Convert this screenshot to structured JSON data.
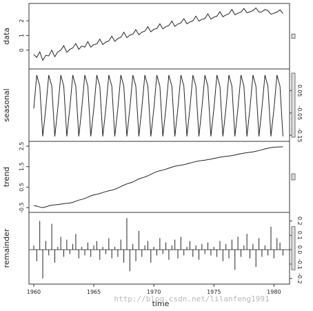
{
  "chart_data": {
    "type": "line",
    "title": "",
    "xlabel": "time",
    "x_ticks": [
      1960,
      1965,
      1970,
      1975,
      1980
    ],
    "x_range": [
      1959.6,
      1981.3
    ],
    "series_start": 1960.0,
    "series_end": 1980.75,
    "frequency": 4,
    "panels": [
      {
        "name": "data",
        "ylabel": "data",
        "ylim": [
          -1.1,
          3.0
        ],
        "yticks": [
          0,
          1,
          2
        ],
        "tick_side": "left",
        "values": [
          -0.3,
          -0.5,
          -0.12,
          -0.7,
          -0.36,
          -0.4,
          0.0,
          -0.45,
          -0.12,
          0.0,
          0.3,
          -0.15,
          0.05,
          0.15,
          0.45,
          0.05,
          0.28,
          0.2,
          0.58,
          0.2,
          0.38,
          0.42,
          0.75,
          0.38,
          0.55,
          0.62,
          0.95,
          0.6,
          0.78,
          0.88,
          1.22,
          0.85,
          1.02,
          1.08,
          1.4,
          1.05,
          1.22,
          1.3,
          1.6,
          1.25,
          1.42,
          1.48,
          1.8,
          1.45,
          1.6,
          1.68,
          1.98,
          1.62,
          1.78,
          1.86,
          2.15,
          1.8,
          1.92,
          2.0,
          2.32,
          1.98,
          2.1,
          2.16,
          2.48,
          2.12,
          2.25,
          2.32,
          2.62,
          2.28,
          2.4,
          2.48,
          2.78,
          2.42,
          2.52,
          2.6,
          2.85,
          2.55,
          2.62,
          2.7,
          2.88,
          2.6,
          2.62,
          2.78,
          2.7,
          2.45,
          2.52,
          2.6,
          2.75,
          2.5
        ]
      },
      {
        "name": "seasonal",
        "ylabel": "seasonal",
        "ylim": [
          -0.165,
          0.135
        ],
        "yticks": [
          0.05,
          -0.05,
          -0.15
        ],
        "ytick_labels": [
          "0.05",
          "-0.05",
          "-0.15"
        ],
        "tick_side": "right",
        "pattern": [
          -0.03,
          0.12,
          0.07,
          -0.155
        ]
      },
      {
        "name": "trend",
        "ylabel": "trend",
        "ylim": [
          -0.6,
          2.6
        ],
        "yticks": [
          -0.5,
          0.5,
          1.5,
          2.5
        ],
        "ytick_labels": [
          "-0.5",
          "0.5",
          "1.5",
          "2.5"
        ],
        "tick_side": "left",
        "anchors": [
          [
            1960.0,
            -0.4
          ],
          [
            1960.75,
            -0.5
          ],
          [
            1961.5,
            -0.38
          ],
          [
            1963.0,
            -0.28
          ],
          [
            1964.0,
            -0.1
          ],
          [
            1965.0,
            0.12
          ],
          [
            1966.5,
            0.35
          ],
          [
            1968.0,
            0.7
          ],
          [
            1969.0,
            0.95
          ],
          [
            1970.5,
            1.3
          ],
          [
            1972.0,
            1.55
          ],
          [
            1974.0,
            1.8
          ],
          [
            1976.0,
            2.0
          ],
          [
            1978.0,
            2.2
          ],
          [
            1980.0,
            2.45
          ],
          [
            1980.75,
            2.47
          ]
        ]
      },
      {
        "name": "remainder",
        "ylabel": "remainder",
        "ylim": [
          -0.22,
          0.24
        ],
        "yticks": [
          0.2,
          0.1,
          0.0,
          -0.1,
          -0.2
        ],
        "ytick_labels": [
          "0.2",
          "0.1",
          "0.0",
          "-0.1",
          "-0.2"
        ],
        "tick_side": "right",
        "values": [
          0.03,
          -0.08,
          0.2,
          -0.2,
          0.06,
          -0.04,
          0.18,
          -0.09,
          0.02,
          0.09,
          -0.05,
          0.07,
          -0.03,
          0.04,
          0.11,
          -0.06,
          0.02,
          -0.04,
          0.05,
          -0.05,
          0.03,
          0.06,
          -0.07,
          0.02,
          -0.03,
          0.08,
          -0.06,
          0.02,
          -0.05,
          0.07,
          -0.09,
          0.22,
          -0.15,
          0.04,
          -0.08,
          0.13,
          -0.05,
          0.03,
          0.06,
          -0.09,
          0.02,
          -0.04,
          0.08,
          -0.03,
          0.05,
          -0.07,
          0.03,
          0.07,
          -0.06,
          0.09,
          -0.04,
          0.02,
          0.06,
          -0.05,
          0.03,
          -0.07,
          0.04,
          -0.03,
          0.05,
          -0.04,
          0.02,
          -0.05,
          0.06,
          -0.08,
          0.04,
          -0.06,
          0.07,
          -0.14,
          0.09,
          -0.05,
          0.03,
          0.11,
          -0.06,
          0.04,
          -0.12,
          0.08,
          -0.05,
          0.03,
          -0.04,
          0.16,
          -0.06,
          0.08,
          0.05,
          -0.04
        ]
      }
    ]
  },
  "watermark": "http://blog.csdn.net/lilanfeng1991"
}
